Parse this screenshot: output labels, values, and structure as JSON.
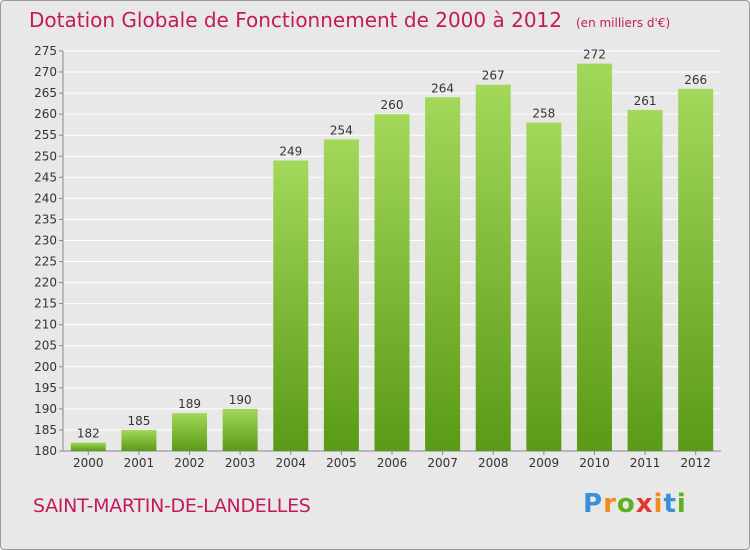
{
  "header": {
    "title": "Dotation Globale de Fonctionnement de 2000 à 2012",
    "unit": "(en milliers d'€)"
  },
  "footer": {
    "commune": "SAINT-MARTIN-DE-LANDELLES",
    "logo_text": "Proxiti"
  },
  "colors": {
    "title": "#c31a5b",
    "bar_light": "#a3d85a",
    "bar_dark": "#5a9a16",
    "background": "#e8e8e8"
  },
  "chart_data": {
    "type": "bar",
    "categories": [
      "2000",
      "2001",
      "2002",
      "2003",
      "2004",
      "2005",
      "2006",
      "2007",
      "2008",
      "2009",
      "2010",
      "2011",
      "2012"
    ],
    "values": [
      182,
      185,
      189,
      190,
      249,
      254,
      260,
      264,
      267,
      258,
      272,
      261,
      266
    ],
    "ylim": [
      180,
      275
    ],
    "yticks": [
      180,
      185,
      190,
      195,
      200,
      205,
      210,
      215,
      220,
      225,
      230,
      235,
      240,
      245,
      250,
      255,
      260,
      265,
      270,
      275
    ],
    "grid": true,
    "legend": "none"
  }
}
